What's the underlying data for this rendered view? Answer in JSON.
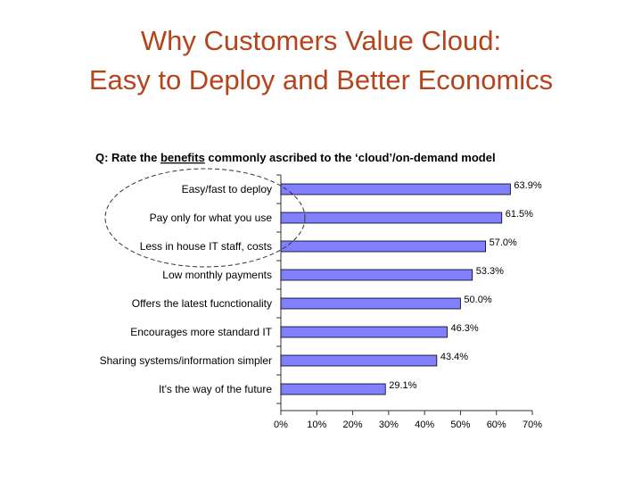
{
  "slide": {
    "title_line1": "Why Customers Value Cloud:",
    "title_line2": "Easy to Deploy and Better Economics"
  },
  "chart_data": {
    "type": "bar",
    "orientation": "horizontal",
    "question_prefix": "Q: Rate the ",
    "question_emphasis": "benefits",
    "question_suffix": " commonly ascribed to the  ‘cloud’/on-demand model",
    "categories": [
      "Easy/fast to deploy",
      "Pay only for what you use",
      "Less in house IT staff, costs",
      "Low monthly payments",
      "Offers the latest fucnctionality",
      "Encourages more standard IT",
      "Sharing systems/information simpler",
      "It's the way of the future"
    ],
    "values": [
      63.9,
      61.5,
      57.0,
      53.3,
      50.0,
      46.3,
      43.4,
      29.1
    ],
    "value_labels": [
      "63.9%",
      "61.5%",
      "57.0%",
      "53.3%",
      "50.0%",
      "46.3%",
      "43.4%",
      "29.1%"
    ],
    "xlim": [
      0,
      70
    ],
    "xticks": [
      "0%",
      "10%",
      "20%",
      "30%",
      "40%",
      "50%",
      "60%",
      "70%"
    ],
    "bar_color": "#8080ff",
    "grid": false,
    "annotation": "ellipse around top three categories"
  }
}
